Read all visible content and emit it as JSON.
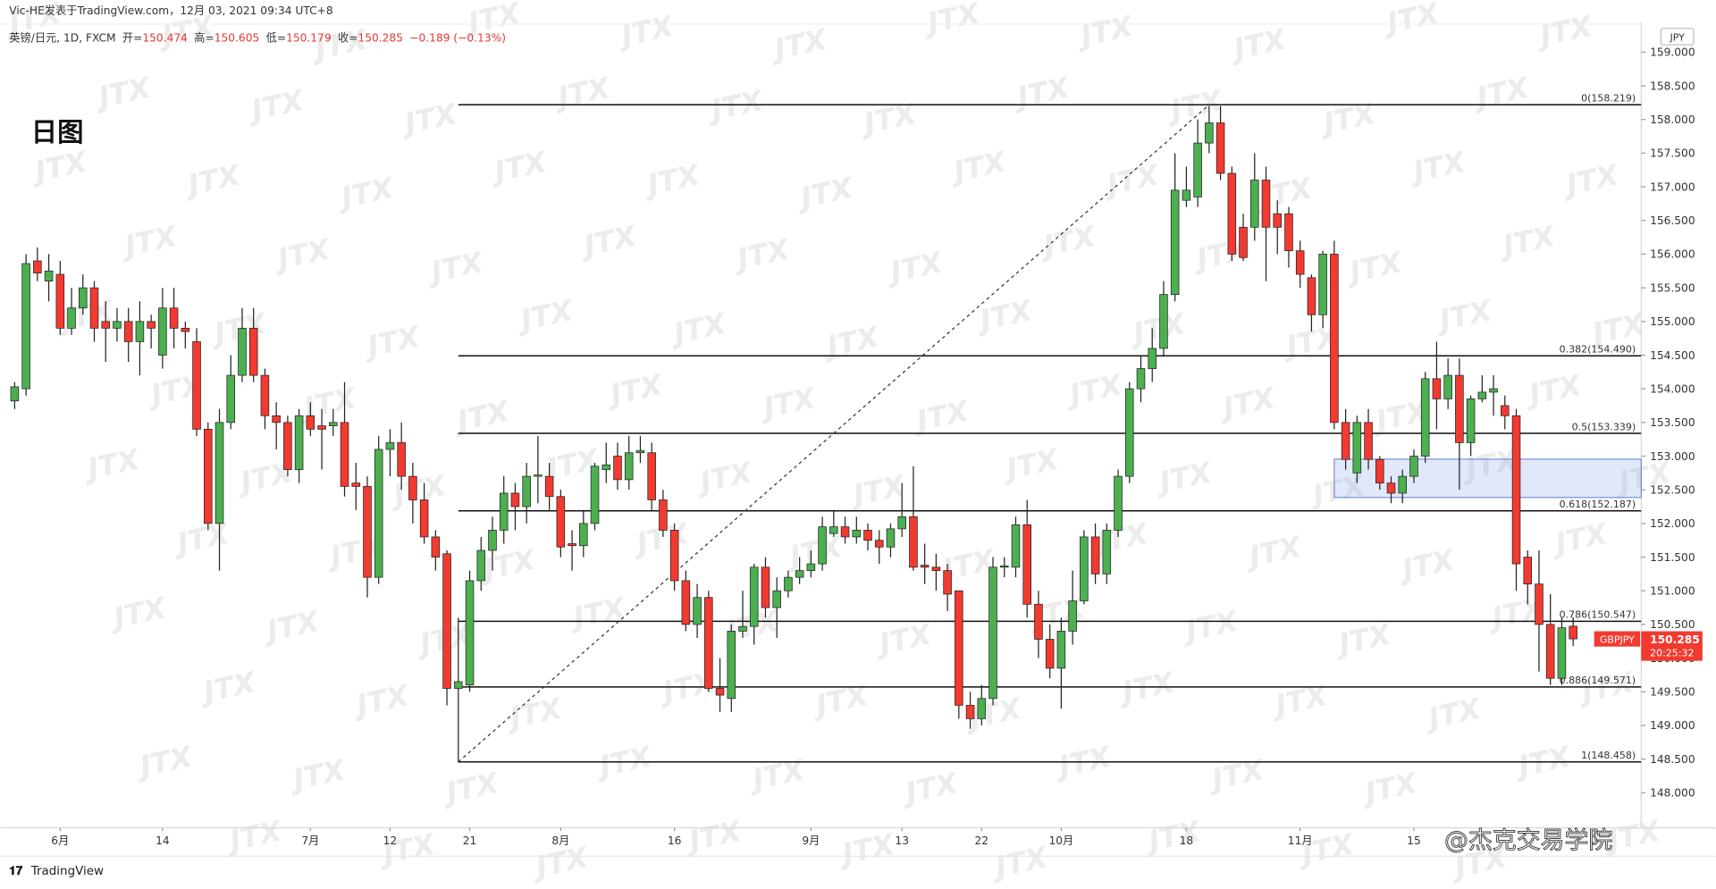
{
  "chart_data": {
    "type": "candlestick",
    "header": "Vic-HE发表于TradingView.com，12月 03, 2021 09:34 UTC+8",
    "symbol": "英镑/日元, 1D, FXCM",
    "ohlc_labels": [
      "开=",
      "高=",
      "低=",
      "收="
    ],
    "change": "−0.189 (−0.13%)",
    "annotation": "日图",
    "currency": "JPY",
    "ticker": "GBPJPY",
    "countdown": "20:25:32",
    "watermark": "JTX",
    "brand": "TradingView",
    "credit": "@杰克交易学院",
    "up_color": "#4caf50",
    "down_color": "#f23a30",
    "categories": [
      null,
      null,
      null,
      null,
      "6月",
      null,
      null,
      null,
      null,
      null,
      null,
      null,
      null,
      "14",
      null,
      null,
      null,
      null,
      null,
      null,
      null,
      null,
      null,
      null,
      null,
      null,
      "7月",
      null,
      null,
      null,
      null,
      null,
      null,
      "12",
      null,
      null,
      null,
      null,
      null,
      null,
      "21",
      null,
      null,
      null,
      null,
      null,
      null,
      null,
      "8月",
      null,
      null,
      null,
      null,
      null,
      null,
      null,
      null,
      null,
      "16",
      null,
      null,
      null,
      null,
      null,
      null,
      null,
      null,
      null,
      null,
      null,
      "9月",
      null,
      null,
      null,
      null,
      null,
      null,
      null,
      "13",
      null,
      null,
      null,
      null,
      null,
      null,
      "22",
      null,
      null,
      null,
      null,
      null,
      null,
      "10月",
      null,
      null,
      null,
      null,
      null,
      null,
      null,
      null,
      null,
      null,
      "18",
      null,
      null,
      null,
      null,
      null,
      null,
      null,
      null,
      null,
      "11月",
      null,
      null,
      null,
      null,
      null,
      null,
      null,
      null,
      null,
      "15",
      null,
      null,
      null,
      null,
      null,
      null,
      null,
      null,
      null,
      null,
      null,
      null,
      null,
      null
    ],
    "open": [
      153.82,
      154.0,
      155.9,
      155.6,
      155.7,
      154.9,
      155.2,
      155.5,
      155.0,
      154.9,
      155.0,
      154.7,
      155.0,
      154.5,
      155.2,
      154.9,
      154.7,
      153.4,
      152.0,
      153.5,
      154.2,
      154.9,
      154.2,
      153.6,
      153.5,
      152.8,
      153.6,
      153.45,
      153.45,
      153.5,
      152.6,
      152.55,
      151.2,
      153.1,
      153.2,
      152.7,
      152.35,
      151.8,
      151.55,
      149.55,
      149.6,
      151.15,
      151.6,
      151.9,
      152.45,
      152.25,
      152.7,
      152.7,
      152.4,
      151.7,
      151.67,
      152.0,
      152.8,
      153.0,
      152.65,
      153.05,
      153.05,
      152.35,
      151.9,
      151.15,
      150.5,
      150.9,
      149.55,
      149.4,
      150.4,
      150.47,
      151.35,
      150.75,
      151.0,
      151.2,
      151.3,
      151.4,
      151.85,
      151.95,
      151.8,
      151.9,
      151.75,
      151.65,
      151.92,
      152.1,
      151.38,
      151.35,
      151.3,
      151.0,
      149.3,
      149.1,
      149.4,
      151.35,
      151.35,
      151.98,
      150.8,
      150.28,
      149.85,
      150.4,
      150.85,
      151.8,
      151.25,
      151.9,
      152.7,
      154.0,
      154.3,
      154.6,
      155.4,
      156.8,
      156.85,
      157.65,
      157.95,
      157.2,
      156.4,
      156.4,
      157.1,
      156.6,
      156.6,
      156.05,
      155.65,
      155.1,
      156.0,
      153.5,
      152.75,
      153.5,
      152.95,
      152.6,
      152.45,
      152.7,
      153.0,
      154.15,
      153.85,
      154.2,
      153.2,
      153.85,
      153.95,
      153.75,
      153.6,
      151.5,
      151.1,
      150.5,
      149.7,
      150.474
    ],
    "high": [
      154.1,
      156.0,
      156.1,
      156.0,
      155.9,
      155.5,
      155.7,
      155.6,
      155.3,
      155.2,
      155.2,
      155.3,
      155.1,
      155.5,
      155.5,
      155.0,
      154.9,
      153.5,
      153.7,
      154.5,
      155.2,
      155.2,
      154.3,
      153.8,
      153.6,
      153.7,
      153.8,
      153.7,
      153.7,
      154.1,
      152.9,
      152.7,
      153.3,
      153.4,
      153.5,
      152.9,
      152.6,
      151.9,
      151.6,
      150.6,
      151.3,
      151.8,
      152.1,
      152.7,
      152.6,
      152.9,
      153.3,
      152.9,
      152.5,
      151.9,
      152.2,
      152.9,
      153.2,
      153.2,
      153.3,
      153.3,
      153.2,
      152.5,
      152.0,
      151.3,
      151.1,
      151.0,
      150.0,
      150.5,
      151.0,
      151.4,
      151.5,
      151.2,
      151.3,
      151.5,
      151.6,
      152.1,
      152.2,
      152.1,
      152.1,
      152.0,
      151.9,
      152.0,
      152.6,
      152.85,
      151.7,
      151.55,
      151.4,
      151.0,
      149.5,
      149.6,
      151.5,
      151.5,
      152.1,
      152.35,
      151.0,
      150.5,
      150.6,
      151.3,
      151.9,
      152.0,
      152.0,
      152.8,
      154.1,
      154.5,
      154.9,
      155.6,
      157.5,
      157.3,
      158.0,
      158.2,
      158.2,
      157.3,
      156.6,
      157.5,
      157.3,
      156.8,
      156.7,
      156.2,
      155.7,
      156.05,
      156.2,
      153.7,
      153.6,
      153.7,
      153.0,
      152.7,
      152.8,
      153.1,
      154.25,
      154.7,
      154.45,
      154.45,
      153.9,
      154.2,
      154.2,
      153.9,
      153.7,
      151.6,
      151.6,
      150.95,
      150.6,
      150.605
    ],
    "low": [
      153.7,
      153.9,
      155.6,
      155.3,
      154.8,
      154.8,
      155.1,
      154.7,
      154.4,
      154.7,
      154.4,
      154.2,
      154.6,
      154.3,
      154.6,
      154.6,
      153.3,
      151.9,
      151.3,
      153.4,
      154.1,
      154.1,
      153.4,
      153.1,
      152.7,
      152.6,
      153.3,
      152.8,
      153.3,
      152.4,
      152.2,
      150.9,
      151.1,
      152.7,
      152.5,
      152.0,
      151.7,
      151.3,
      149.3,
      148.45,
      149.5,
      151.0,
      151.3,
      151.7,
      151.9,
      152.0,
      152.3,
      152.2,
      151.5,
      151.3,
      151.5,
      151.9,
      152.6,
      152.5,
      152.5,
      152.9,
      152.2,
      151.8,
      151.0,
      150.4,
      150.3,
      149.5,
      149.2,
      149.2,
      150.3,
      150.2,
      150.6,
      150.3,
      150.9,
      151.1,
      151.2,
      151.3,
      151.8,
      151.7,
      151.7,
      151.6,
      151.4,
      151.5,
      151.8,
      151.3,
      151.1,
      151.0,
      150.7,
      149.1,
      148.95,
      149.0,
      149.3,
      151.2,
      151.2,
      150.6,
      150.0,
      149.7,
      149.25,
      150.2,
      150.8,
      151.1,
      151.1,
      151.8,
      152.6,
      153.8,
      154.1,
      154.5,
      155.3,
      156.7,
      156.7,
      157.5,
      157.1,
      155.9,
      155.9,
      156.2,
      155.6,
      156.0,
      155.8,
      155.5,
      154.85,
      154.9,
      153.4,
      152.8,
      152.6,
      152.8,
      152.5,
      152.3,
      152.3,
      152.6,
      152.9,
      153.4,
      153.7,
      152.5,
      153.0,
      153.8,
      153.6,
      153.4,
      151.0,
      150.8,
      149.8,
      149.6,
      149.6,
      150.179
    ],
    "close": [
      154.03,
      155.86,
      155.72,
      155.75,
      154.9,
      155.2,
      155.5,
      154.9,
      154.9,
      155.0,
      154.7,
      155.0,
      154.9,
      155.2,
      154.9,
      154.85,
      153.4,
      152.0,
      153.5,
      154.2,
      154.9,
      154.2,
      153.6,
      153.5,
      152.8,
      153.6,
      153.4,
      153.4,
      153.5,
      152.55,
      152.55,
      151.2,
      153.1,
      153.2,
      152.7,
      152.35,
      151.8,
      151.5,
      149.55,
      149.65,
      151.15,
      151.6,
      151.9,
      152.45,
      152.25,
      152.7,
      152.72,
      152.4,
      151.65,
      151.67,
      152.0,
      152.85,
      152.87,
      152.65,
      153.05,
      153.08,
      152.35,
      151.9,
      151.15,
      150.5,
      150.9,
      149.55,
      149.45,
      150.4,
      150.47,
      151.35,
      150.75,
      151.0,
      151.2,
      151.3,
      151.4,
      151.95,
      151.95,
      151.8,
      151.9,
      151.75,
      151.65,
      151.92,
      152.1,
      151.35,
      151.35,
      151.3,
      150.95,
      149.3,
      149.1,
      149.4,
      151.35,
      151.37,
      151.98,
      150.8,
      150.28,
      149.85,
      150.4,
      150.85,
      151.8,
      151.25,
      151.9,
      152.7,
      154.0,
      154.3,
      154.6,
      155.4,
      156.95,
      156.95,
      157.65,
      157.95,
      157.2,
      156.0,
      155.95,
      157.1,
      156.4,
      156.4,
      156.05,
      155.7,
      155.1,
      156.0,
      153.5,
      152.95,
      153.5,
      152.95,
      152.6,
      152.45,
      152.7,
      153.0,
      154.15,
      153.85,
      154.2,
      153.2,
      153.85,
      153.95,
      154.0,
      153.6,
      151.4,
      151.1,
      150.5,
      149.7,
      150.45,
      150.285
    ],
    "fib_levels": [
      {
        "value": 158.219,
        "label": "0(158.219)"
      },
      {
        "value": 154.49,
        "label": "0.382(154.490)"
      },
      {
        "value": 153.339,
        "label": "0.5(153.339)"
      },
      {
        "value": 152.187,
        "label": "0.618(152.187)"
      },
      {
        "value": 150.547,
        "label": "0.786(150.547)"
      },
      {
        "value": 149.571,
        "label": "0.886(149.571)"
      },
      {
        "value": 148.458,
        "label": "1(148.458)"
      }
    ],
    "zone": [
      152.385,
      152.955
    ],
    "ylim": [
      147.48,
      159.45
    ],
    "yticks": [
      {
        "value": 148,
        "label": "148.000"
      },
      {
        "value": 148.5,
        "label": "148.500"
      },
      {
        "value": 149,
        "label": "149.000"
      },
      {
        "value": 149.5,
        "label": "149.500"
      },
      {
        "value": 150,
        "label": "150.000"
      },
      {
        "value": 150.5,
        "label": "150.500"
      },
      {
        "value": 151,
        "label": "151.000"
      },
      {
        "value": 151.5,
        "label": "151.500"
      },
      {
        "value": 152,
        "label": "152.000"
      },
      {
        "value": 152.5,
        "label": "152.500"
      },
      {
        "value": 153,
        "label": "153.000"
      },
      {
        "value": 153.5,
        "label": "153.500"
      },
      {
        "value": 154,
        "label": "154.000"
      },
      {
        "value": 154.5,
        "label": "154.500"
      },
      {
        "value": 155,
        "label": "155.000"
      },
      {
        "value": 155.5,
        "label": "155.500"
      },
      {
        "value": 156,
        "label": "156.000"
      },
      {
        "value": 156.5,
        "label": "156.500"
      },
      {
        "value": 157,
        "label": "157.000"
      },
      {
        "value": 157.5,
        "label": "157.500"
      },
      {
        "value": 158,
        "label": "158.000"
      },
      {
        "value": 158.5,
        "label": "158.500"
      },
      {
        "value": 159,
        "label": "159.000"
      }
    ]
  }
}
